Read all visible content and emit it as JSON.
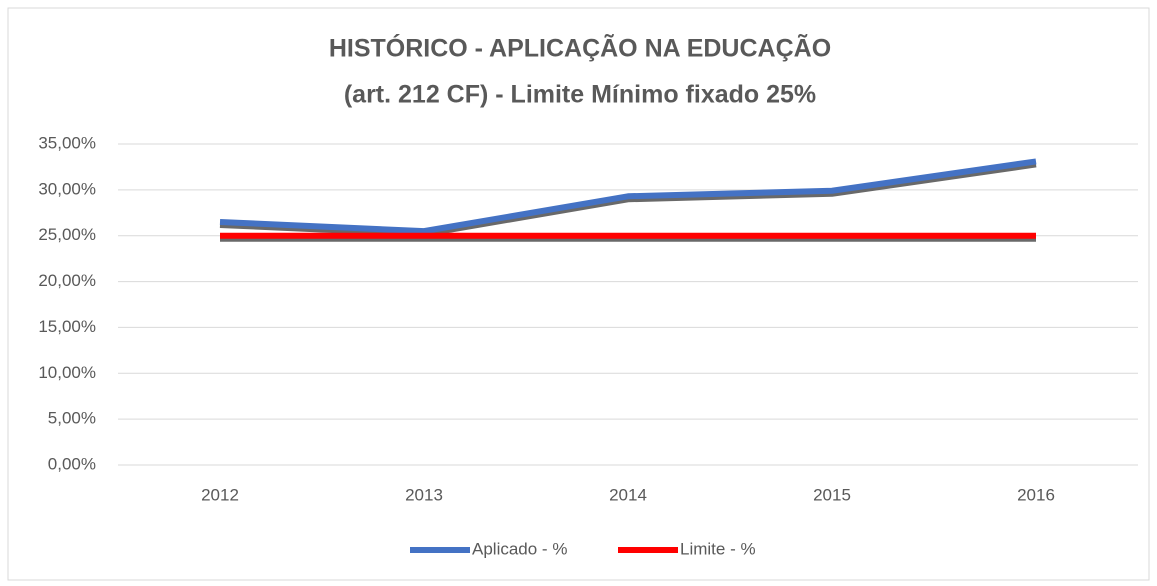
{
  "chart_data": {
    "type": "line",
    "title": [
      "HISTÓRICO - APLICAÇÃO NA EDUCAÇÃO",
      "(art. 212 CF) - Limite Mínimo fixado 25%"
    ],
    "categories": [
      "2012",
      "2013",
      "2014",
      "2015",
      "2016"
    ],
    "series": [
      {
        "name": "Aplicado - %",
        "color": "#4472c4",
        "values": [
          26.5,
          25.5,
          29.3,
          29.9,
          33.1
        ]
      },
      {
        "name": "Limite - %",
        "color": "#ff0000",
        "values": [
          25,
          25,
          25,
          25,
          25
        ]
      }
    ],
    "ylim": [
      0,
      35
    ],
    "yticks": [
      {
        "value": 0,
        "label": "0,00%"
      },
      {
        "value": 5,
        "label": "5,00%"
      },
      {
        "value": 10,
        "label": "10,00%"
      },
      {
        "value": 15,
        "label": "15,00%"
      },
      {
        "value": 20,
        "label": "20,00%"
      },
      {
        "value": 25,
        "label": "25,00%"
      },
      {
        "value": 30,
        "label": "30,00%"
      },
      {
        "value": 35,
        "label": "35,00%"
      }
    ],
    "grid": true,
    "legend": "bottom"
  }
}
